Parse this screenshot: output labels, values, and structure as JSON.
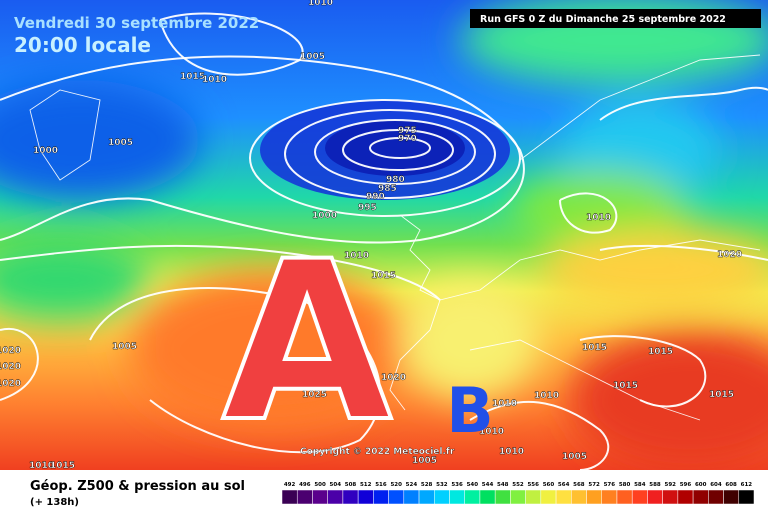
{
  "header": {
    "date": "Vendredi 30 septembre 2022",
    "time": "20:00 locale",
    "run": "Run GFS 0 Z du Dimanche 25 septembre 2022"
  },
  "map": {
    "high_label": "A",
    "low_label": "B",
    "copyright": "Copyright © 2022 Meteociel.fr",
    "isobar_labels": [
      "1010",
      "1015",
      "1010",
      "1005",
      "1005",
      "1000",
      "975",
      "970",
      "980",
      "985",
      "990",
      "995",
      "1000",
      "1010",
      "1015",
      "1010",
      "1020",
      "1005",
      "1020",
      "1020",
      "1020",
      "1025",
      "1020",
      "1015",
      "1015",
      "1015",
      "1015",
      "1010",
      "1010",
      "1010",
      "1010",
      "1005",
      "1005",
      "1010",
      "1015"
    ]
  },
  "footer": {
    "title": "Géop. Z500 & pression au sol",
    "lead": "(+ 138h)",
    "scale": [
      492,
      496,
      500,
      504,
      508,
      512,
      516,
      520,
      524,
      528,
      532,
      536,
      540,
      544,
      548,
      552,
      556,
      560,
      564,
      568,
      572,
      576,
      580,
      584,
      588,
      592,
      596,
      600,
      604,
      608,
      612
    ],
    "scale_colors": [
      "#3a0054",
      "#4b0070",
      "#5a008c",
      "#4b00a8",
      "#3000c0",
      "#1000d8",
      "#0020f0",
      "#0050ff",
      "#0080ff",
      "#00a8ff",
      "#00d0ff",
      "#00e8e0",
      "#00f0a0",
      "#00e060",
      "#40e040",
      "#80f040",
      "#c0f040",
      "#f0f040",
      "#ffe040",
      "#ffc030",
      "#ffa020",
      "#ff8020",
      "#ff6020",
      "#ff4020",
      "#f02020",
      "#d01010",
      "#b00000",
      "#900000",
      "#700000",
      "#400000",
      "#000000"
    ]
  }
}
